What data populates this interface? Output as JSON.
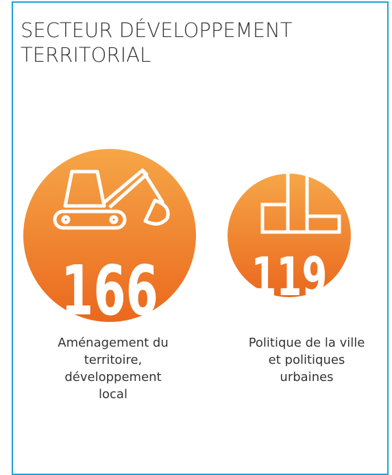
{
  "title": "SECTEUR DÉVELOPPEMENT TERRITORIAL",
  "items": [
    {
      "value": 166,
      "label": "Aménagement du territoire, développement local"
    },
    {
      "value": 119,
      "label": "Politique de la ville et politiques urbaines"
    }
  ]
}
